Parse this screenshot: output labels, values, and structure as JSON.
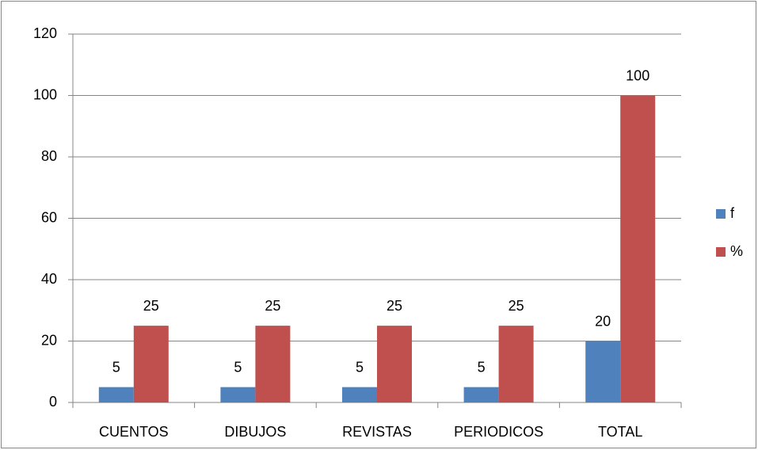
{
  "chart_data": {
    "type": "bar",
    "categories": [
      "CUENTOS",
      "DIBUJOS",
      "REVISTAS",
      "PERIODICOS",
      "TOTAL"
    ],
    "series": [
      {
        "name": "f",
        "color": "#4f81bd",
        "values": [
          5,
          5,
          5,
          5,
          20
        ]
      },
      {
        "name": "%",
        "color": "#c0504d",
        "values": [
          25,
          25,
          25,
          25,
          100
        ]
      }
    ],
    "ylim": [
      0,
      120
    ],
    "yticks": [
      0,
      20,
      40,
      60,
      80,
      100,
      120
    ],
    "grid": true,
    "legend": "right"
  }
}
